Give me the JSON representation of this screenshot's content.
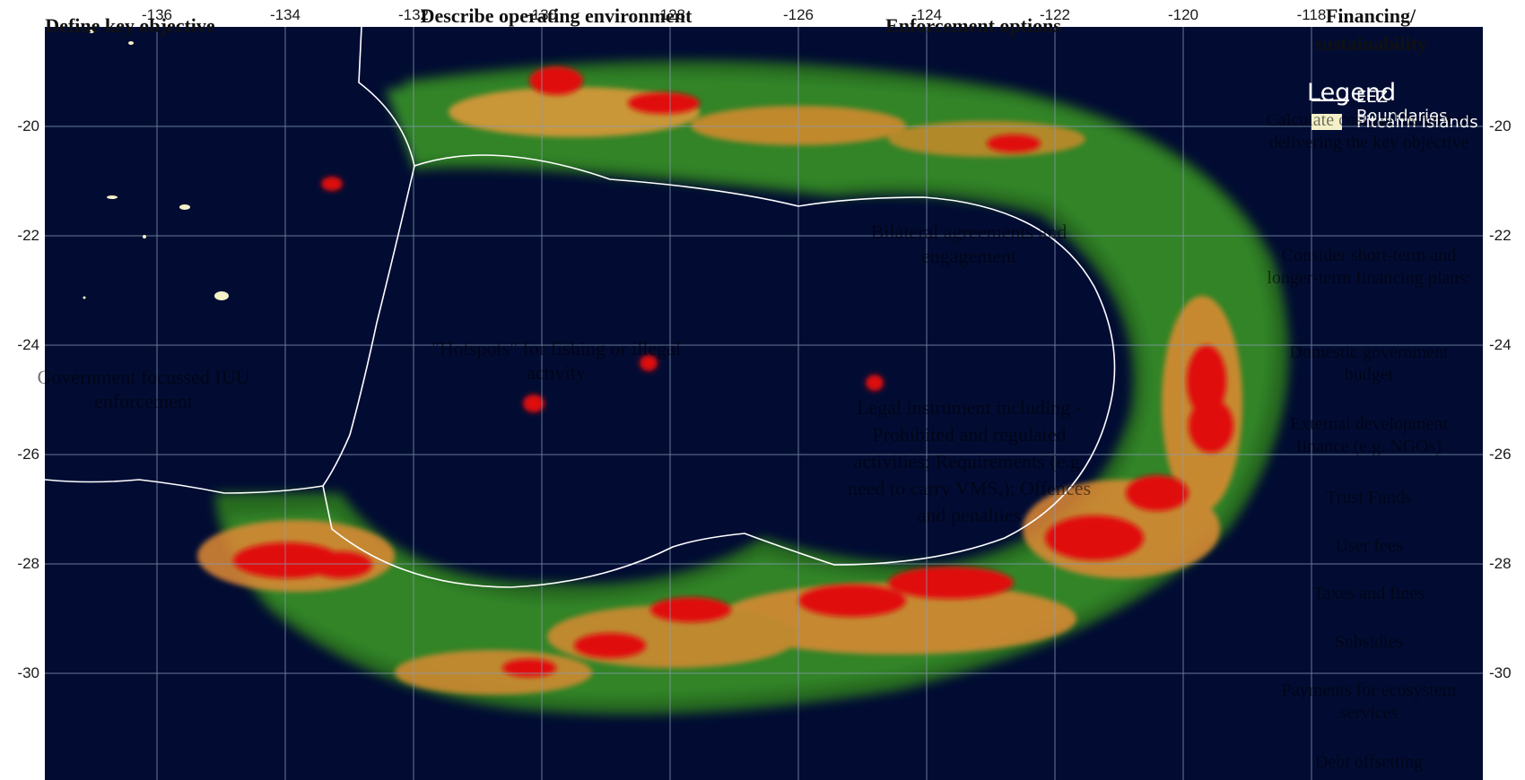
{
  "map": {
    "longitude_ticks": [
      "-136",
      "-134",
      "-132",
      "-130",
      "-128",
      "-126",
      "-124",
      "-122",
      "-120",
      "-118"
    ],
    "latitude_ticks": [
      "-20",
      "-22",
      "-24",
      "-26",
      "-28",
      "-30"
    ],
    "extent": {
      "lon_min": -137.8,
      "lon_max": -115.3,
      "lat_min": -30.8,
      "lat_max": -18.2
    },
    "colors": {
      "ocean": "#020c33",
      "grid": "#8a9bb8",
      "boundary": "#ffffff",
      "heat_low": "#2e7d1f",
      "heat_mid": "#f0a23a",
      "heat_high": "#e00b0b"
    }
  },
  "legend": {
    "title": "Legend",
    "items": [
      {
        "label": "EEZ Boundaries",
        "symbol": "line",
        "color": "#ffffff"
      },
      {
        "label": "Pitcairn Islands",
        "symbol": "swatch",
        "color": "#f4f1c9"
      }
    ]
  },
  "headers": {
    "define": "Define key objective",
    "describe": "Describe operating environment",
    "enforcement": "Enforcement options",
    "financing": "Financing/ sustainability"
  },
  "notes": {
    "gov": "Government focussed IUU enforcement",
    "hotspots": "\"Hotspots\" for fishing or illegal activity",
    "bilateral": "Bilateral agreements and engagement",
    "legal": "Legal instrument including - Prohibited and regulated activities; Requirements (e.g. need to carry VMS,); Offences and penalties"
  },
  "financing_items": [
    "Calculate cost and benefit of delivering the key objective",
    "Consider short-term and longer-term financing plans:",
    "Domestic government budget",
    "External development finance (e.g. NGOs)",
    "Trust Funds",
    "User fees",
    "Taxes and fines",
    "Subsidies",
    "Payments for ecosystem services",
    "Debt offsetting"
  ]
}
